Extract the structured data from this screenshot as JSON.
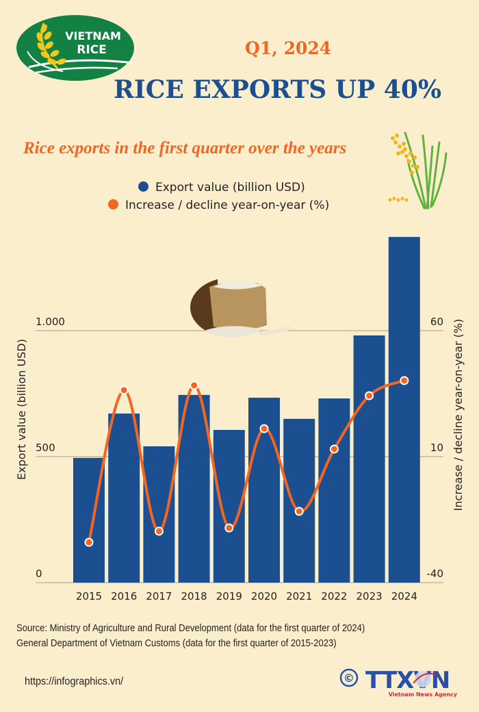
{
  "header": {
    "logo_line1": "VIETNAM",
    "logo_line2": "RICE",
    "quarter": "Q1, 2024",
    "headline": "RICE EXPORTS UP 40%",
    "subtitle": "Rice exports in the first quarter over the years"
  },
  "legend": [
    {
      "label": "Export value (billion USD)",
      "color": "#1c4f8f"
    },
    {
      "label": "Increase / decline year-on-year (%)",
      "color": "#f26522"
    }
  ],
  "colors": {
    "background": "#fbeecd",
    "bar": "#1c4f8f",
    "line": "#f26522",
    "accent_title": "#1c4f8f",
    "accent_orange": "#f26522",
    "grid": "#b8ad96",
    "logo_green": "#138044",
    "logo_yellow": "#f2c81a"
  },
  "chart_data": {
    "type": "bar",
    "title": "Rice exports in the first quarter over the years",
    "categories": [
      "2015",
      "2016",
      "2017",
      "2018",
      "2019",
      "2020",
      "2021",
      "2022",
      "2023",
      "2024"
    ],
    "series": [
      {
        "name": "Export value (billion USD)",
        "type": "bar",
        "axis": "left",
        "values": [
          495,
          671,
          541,
          745,
          606,
          734,
          650,
          731,
          981,
          1372
        ]
      },
      {
        "name": "Increase / decline year-on-year (%)",
        "type": "line",
        "axis": "right",
        "values": [
          -24,
          36.4,
          -19.6,
          38.3,
          -18.3,
          21.1,
          -11.7,
          13.0,
          34.2,
          40.2
        ]
      }
    ],
    "ylabel": "Export value (billion USD)",
    "y2label": "Increase / decline year-on-year (%)",
    "ylim": [
      0,
      1000
    ],
    "y2lim": [
      -40,
      60
    ],
    "yticks": [
      "0",
      "500",
      "1.000"
    ],
    "y2ticks": [
      "-40",
      "10",
      "60"
    ],
    "grid": true,
    "legend_position": "top"
  },
  "footer": {
    "source_line1": "Source: Ministry of Agriculture and Rural Development (data for the first quarter of 2024)",
    "source_line2": "General Department of Vietnam Customs (data for the first quarter of 2015-2023)",
    "url": "https://infographics.vn/",
    "copyright_symbol": "©",
    "agency_logo": "TTXVN",
    "agency_tagline": "Vietnam News Agency"
  }
}
